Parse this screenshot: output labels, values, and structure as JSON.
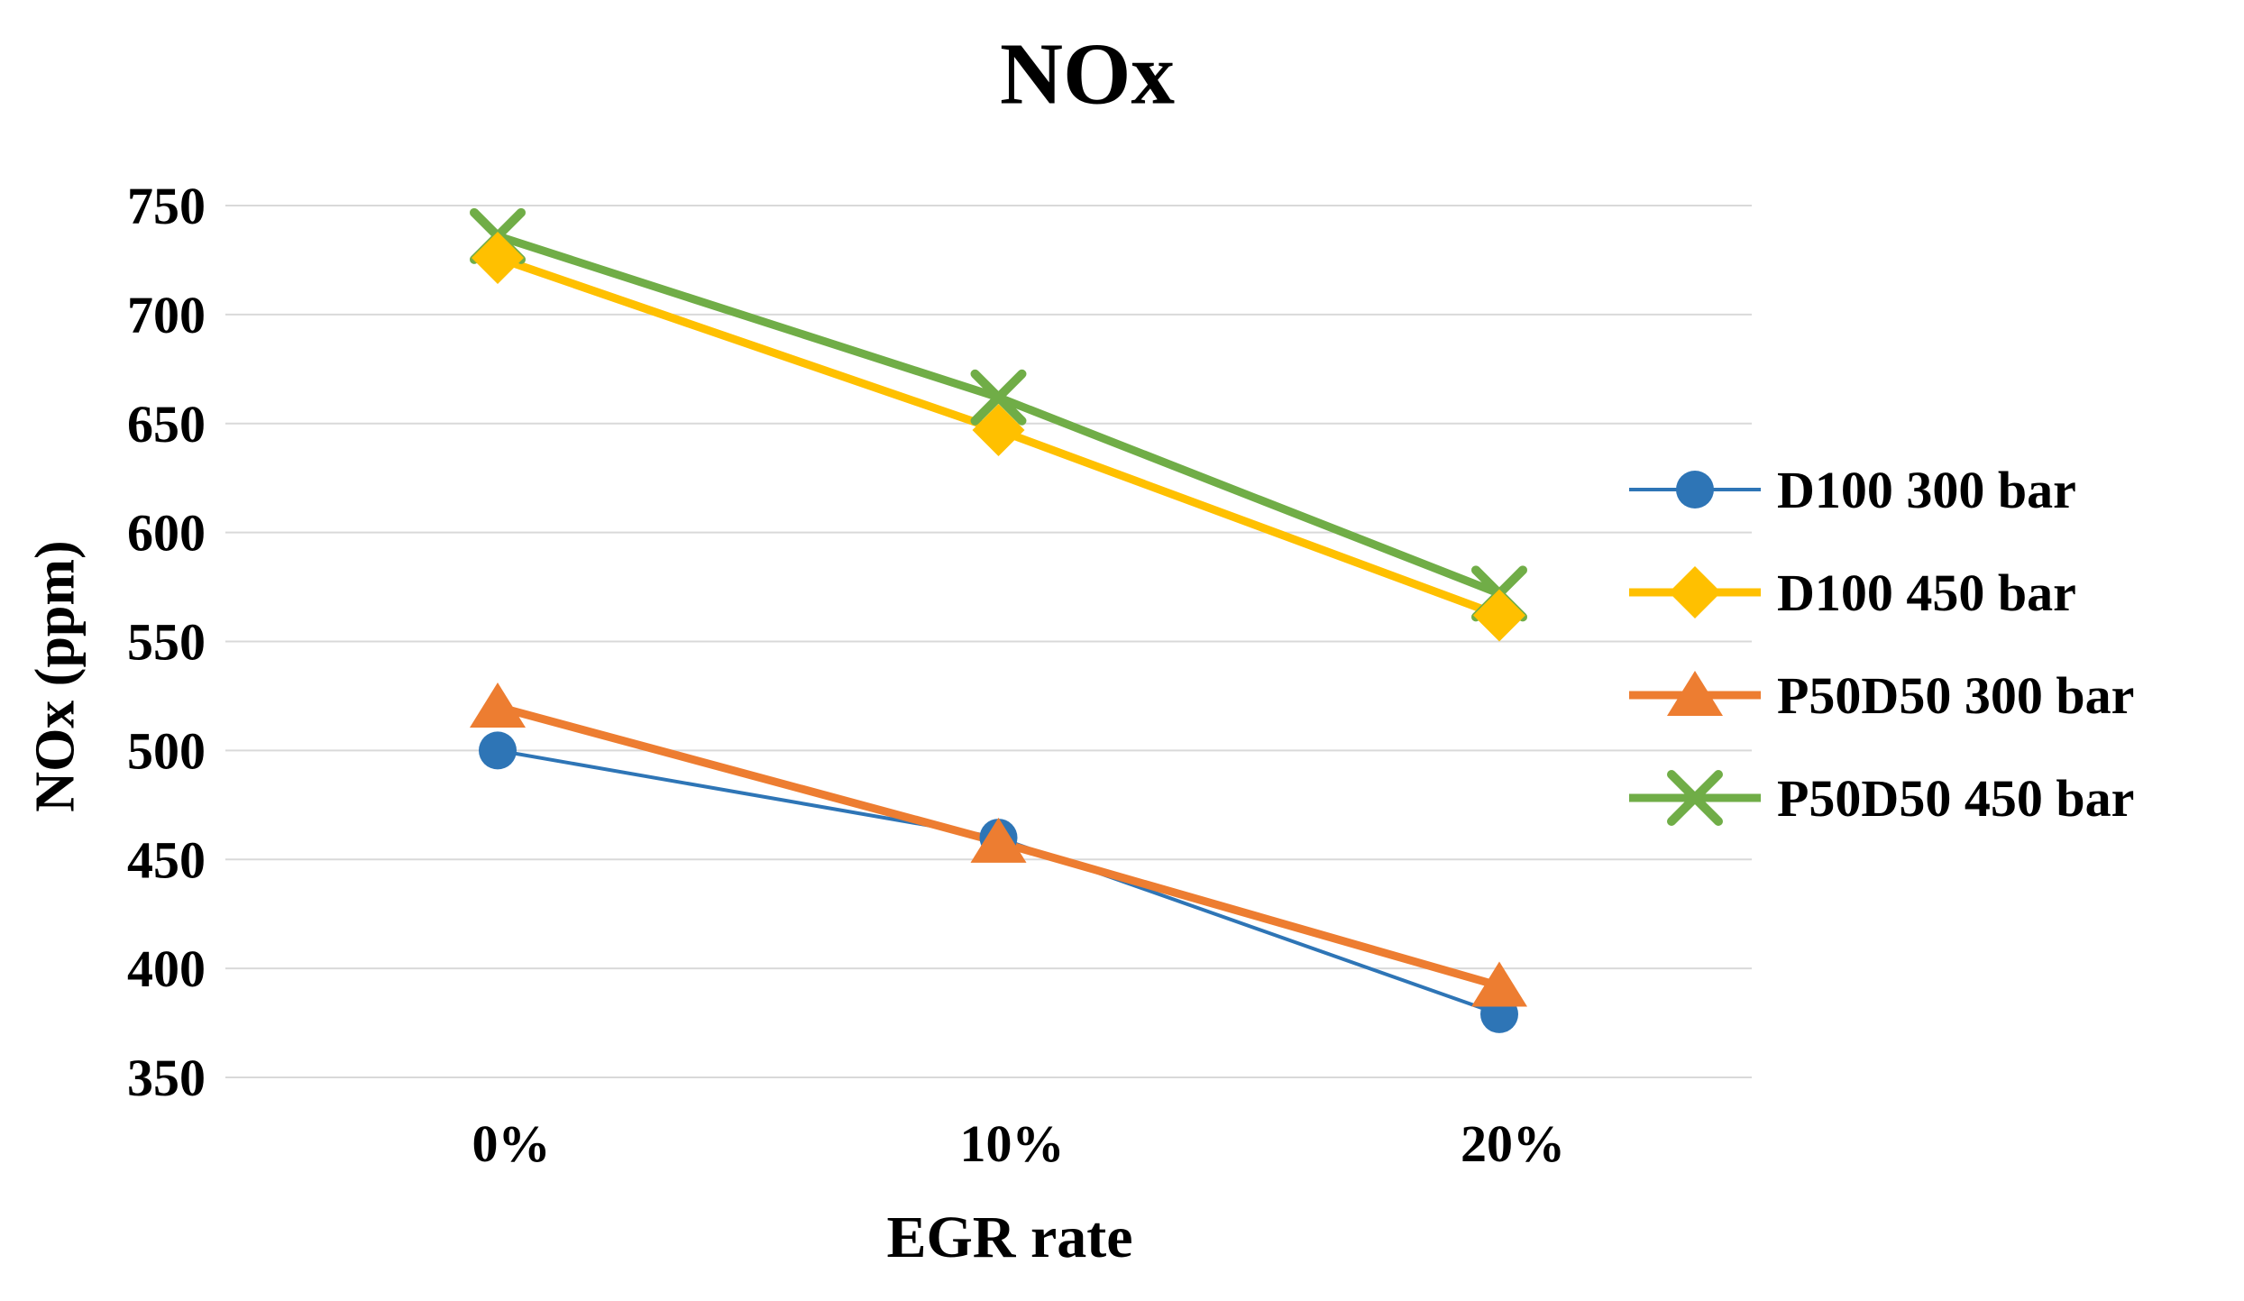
{
  "chart_data": {
    "type": "line",
    "title": "NOx",
    "xlabel": "EGR rate",
    "ylabel": "NOx (ppm)",
    "categories": [
      "0%",
      "10%",
      "20%"
    ],
    "series": [
      {
        "name": "D100 300 bar",
        "color": "#2E75B6",
        "marker": "circle",
        "line_width": 4,
        "values": [
          500,
          460,
          379
        ]
      },
      {
        "name": "D100 450 bar",
        "color": "#FFC000",
        "marker": "diamond",
        "line_width": 9,
        "values": [
          726,
          647,
          562
        ]
      },
      {
        "name": "P50D50 300 bar",
        "color": "#ED7D31",
        "marker": "triangle",
        "line_width": 9,
        "values": [
          520,
          458,
          392
        ]
      },
      {
        "name": "P50D50 450 bar",
        "color": "#70AD47",
        "marker": "x",
        "line_width": 9,
        "values": [
          736,
          662,
          572
        ]
      }
    ],
    "ylim": [
      350,
      750
    ],
    "yticks": [
      750,
      700,
      650,
      600,
      550,
      500,
      450,
      400,
      350
    ],
    "grid": true,
    "legend_position": "right",
    "gridline_color": "#D9D9D9",
    "text_color": "#000000",
    "background": "#FFFFFF"
  }
}
